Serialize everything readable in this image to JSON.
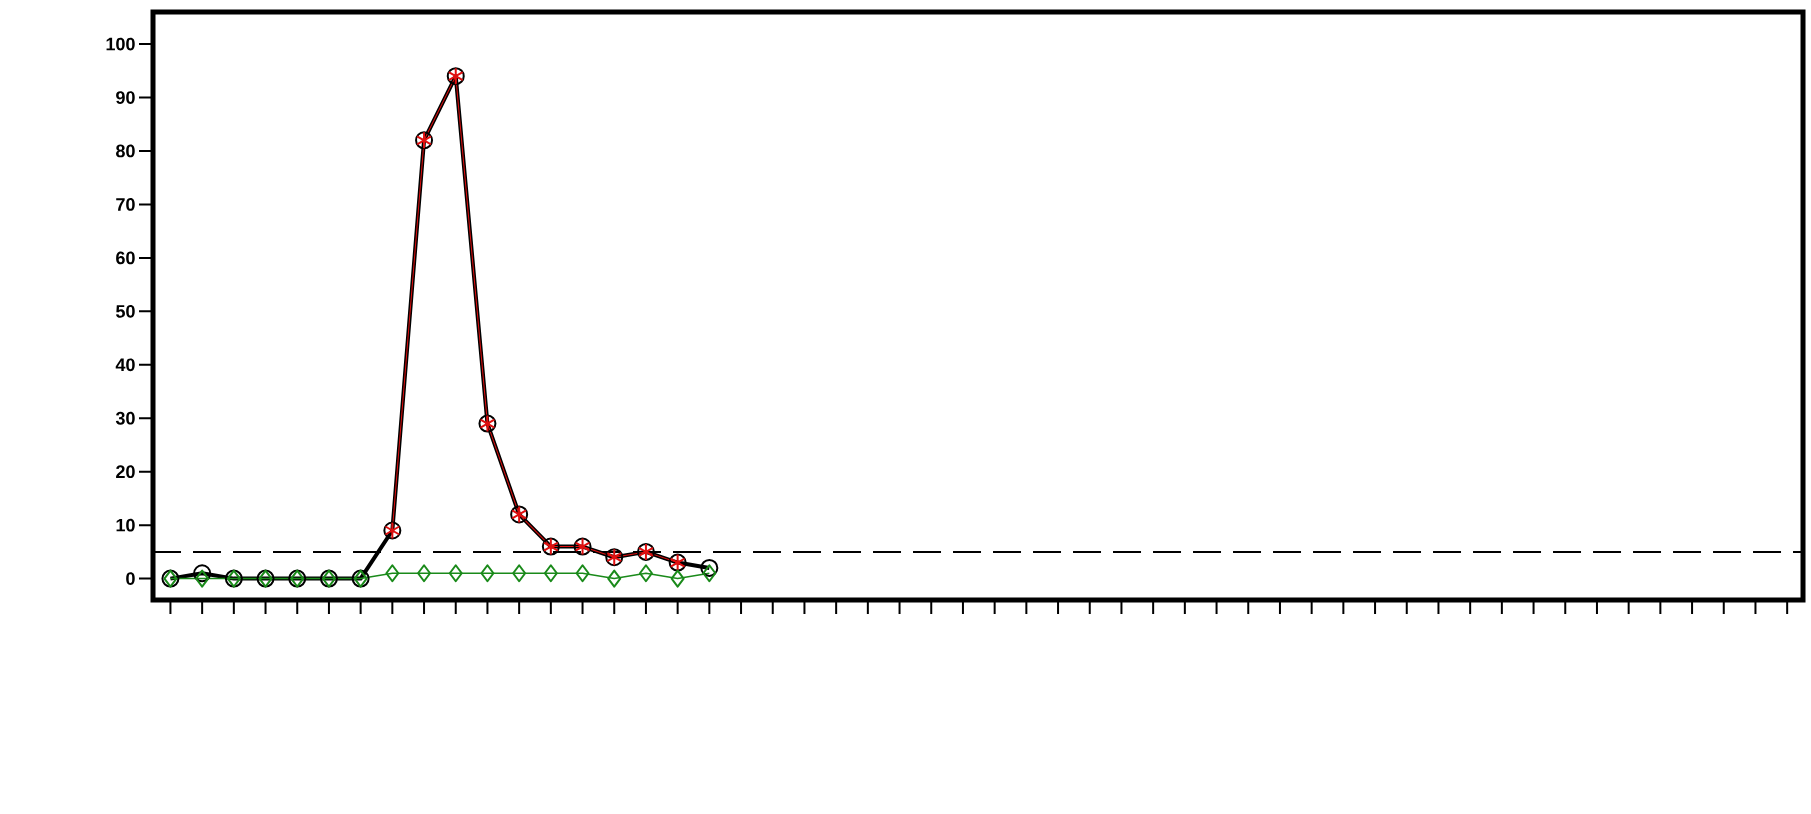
{
  "chart_data": {
    "type": "line",
    "categories": [
      null,
      null,
      null,
      null,
      null,
      null,
      null,
      null,
      null,
      null,
      null,
      null,
      null,
      null,
      null,
      null,
      null,
      null
    ],
    "series": [
      {
        "color": "#000000",
        "marker": "circle",
        "values": [
          0,
          1,
          0,
          0,
          0,
          0,
          0,
          9,
          82,
          94,
          29,
          12,
          6,
          6,
          4,
          5,
          3,
          2
        ]
      },
      {
        "color": "#e01010",
        "marker": "cross",
        "values": [
          null,
          null,
          null,
          null,
          null,
          null,
          null,
          9,
          82,
          94,
          29,
          12,
          6,
          6,
          4,
          5,
          3,
          null
        ]
      },
      {
        "color": "#1a8a1a",
        "marker": "diamond",
        "values": [
          0,
          0,
          0,
          0,
          0,
          0,
          0,
          1,
          1,
          1,
          1,
          1,
          1,
          1,
          0,
          1,
          0,
          1
        ]
      }
    ],
    "ylim": [
      -4,
      106
    ],
    "yticks": [
      0,
      10,
      20,
      30,
      40,
      50,
      60,
      70,
      80,
      90,
      100
    ],
    "ref_lines": [
      {
        "axis": "y",
        "value": 5,
        "line_style": "dashed",
        "color": "#000000"
      }
    ],
    "tick_labels": "y"
  }
}
